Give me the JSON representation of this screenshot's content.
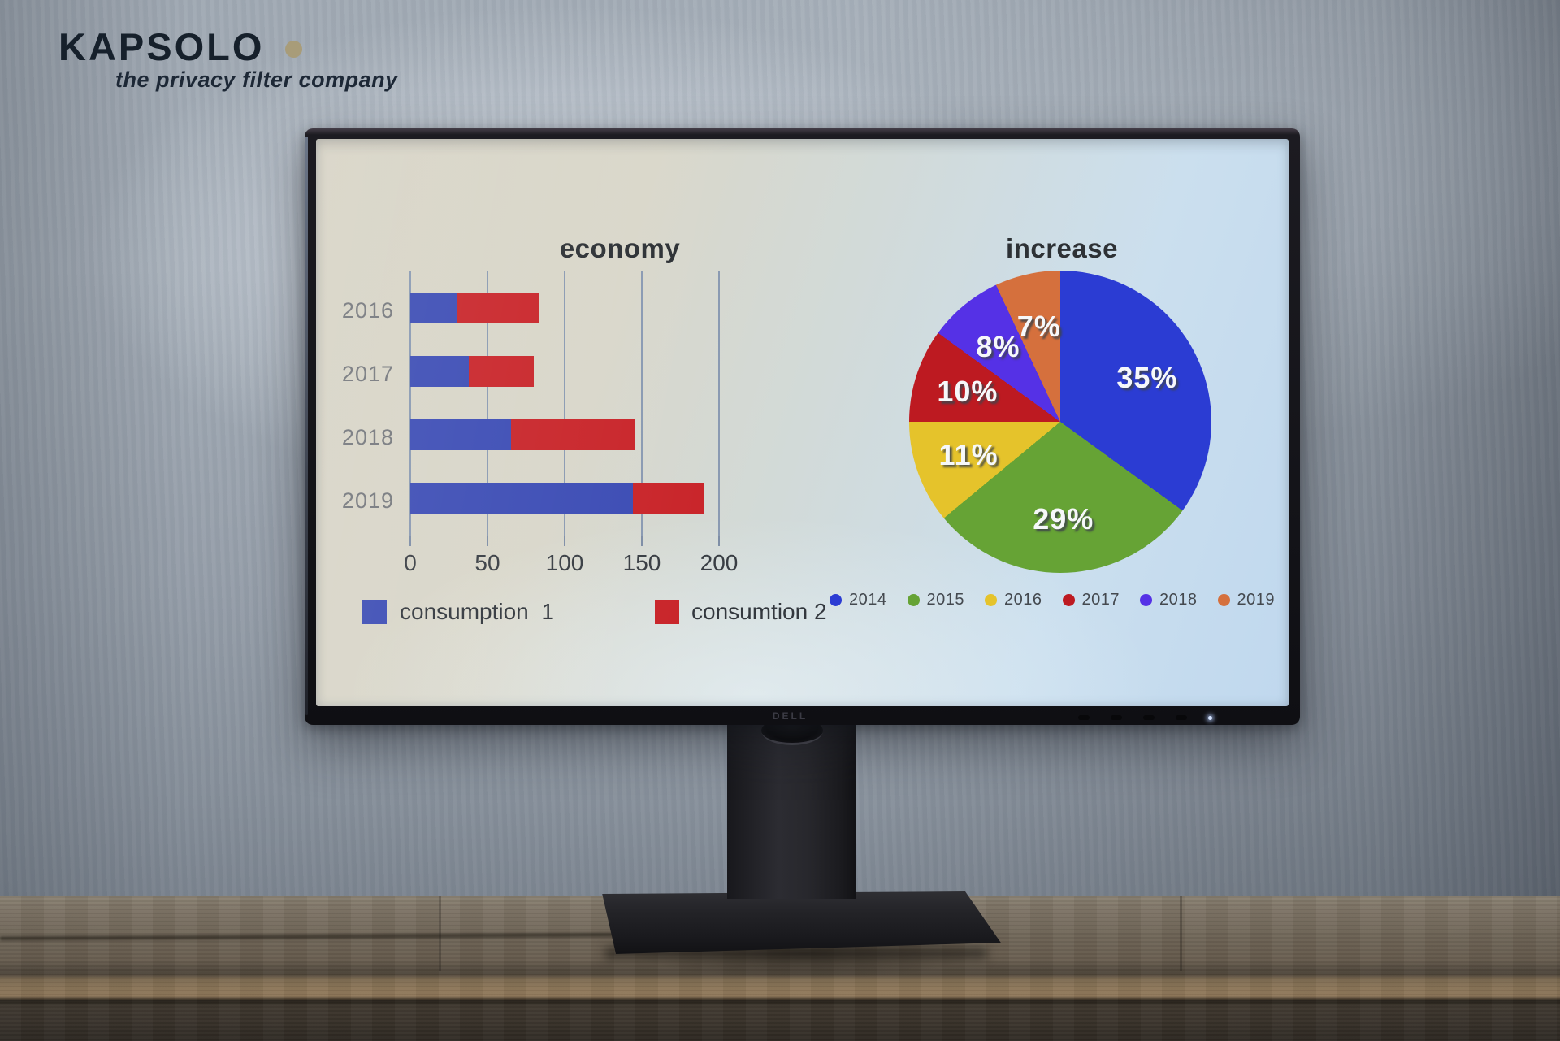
{
  "brand": {
    "logo_text": "KAPSOLO",
    "tagline": "the privacy filter company",
    "dot_color": "#a89c79"
  },
  "monitor": {
    "brand_label": "DELL"
  },
  "chart_data": [
    {
      "type": "bar",
      "orientation": "horizontal",
      "stacked": true,
      "title": "economy",
      "categories": [
        "2016",
        "2017",
        "2018",
        "2019"
      ],
      "series": [
        {
          "name": "consumption  1",
          "color": "#3d4db5",
          "values": [
            30,
            38,
            65,
            144
          ]
        },
        {
          "name": "consumtion 2",
          "color": "#c9262b",
          "values": [
            53,
            42,
            80,
            46
          ]
        }
      ],
      "xlim": [
        0,
        200
      ],
      "xticks": [
        0,
        50,
        100,
        150,
        200
      ],
      "grid": true,
      "legend_position": "bottom"
    },
    {
      "type": "pie",
      "title": "increase",
      "start_angle_deg": 0,
      "direction": "clockwise",
      "legend_position": "bottom",
      "slices": [
        {
          "label": "2014",
          "value": 35,
          "display": "35%",
          "color": "#2b3cd3"
        },
        {
          "label": "2015",
          "value": 29,
          "display": "29%",
          "color": "#66a335"
        },
        {
          "label": "2016",
          "value": 11,
          "display": "11%",
          "color": "#e5c32b"
        },
        {
          "label": "2017",
          "value": 10,
          "display": "10%",
          "color": "#bd1a21"
        },
        {
          "label": "2018",
          "value": 8,
          "display": "8%",
          "color": "#5531e6"
        },
        {
          "label": "2019",
          "value": 7,
          "display": "7%",
          "color": "#d5703d"
        }
      ]
    }
  ]
}
